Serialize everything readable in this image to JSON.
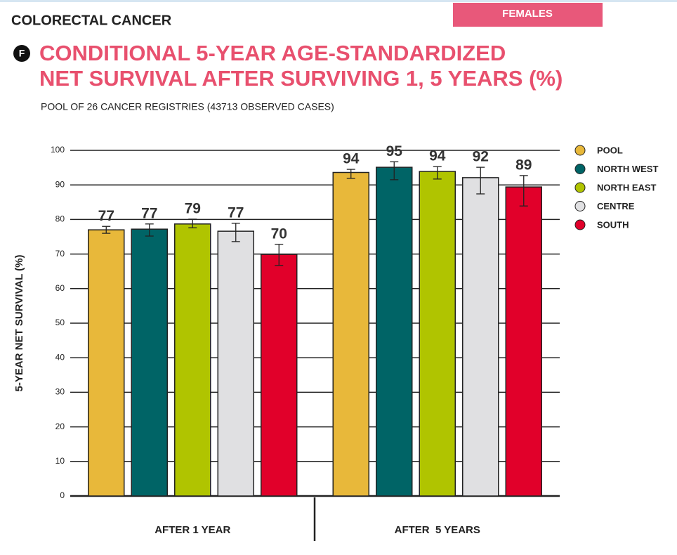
{
  "header": {
    "section": "COLORECTAL CANCER",
    "tag": "FEMALES"
  },
  "chart_data": {
    "type": "bar",
    "panel_label": "F",
    "title": [
      "CONDITIONAL 5-YEAR AGE-STANDARDIZED",
      "NET SURVIVAL AFTER SURVIVING 1, 5 YEARS (%)"
    ],
    "subtitle": "POOL OF 26 CANCER REGISTRIES (43713 OBSERVED CASES)",
    "y_label": "5-YEAR NET SURVIVAL (%)",
    "categories": [
      "AFTER 1 YEAR",
      "AFTER  5 YEARS"
    ],
    "series": [
      {
        "name": "POOL",
        "color": "#e8b83a",
        "values": [
          77.0,
          93.6
        ],
        "lower": [
          76.0,
          91.9
        ],
        "upper": [
          78.0,
          94.5
        ]
      },
      {
        "name": "NORTH WEST",
        "color": "#006466",
        "values": [
          77.2,
          95.1
        ],
        "lower": [
          75.2,
          91.5
        ],
        "upper": [
          78.7,
          96.7
        ]
      },
      {
        "name": "NORTH EAST",
        "color": "#b0c400",
        "values": [
          78.7,
          93.9
        ],
        "lower": [
          77.6,
          91.7
        ],
        "upper": [
          80.1,
          95.3
        ]
      },
      {
        "name": "CENTRE",
        "color": "#e0e0e2",
        "values": [
          76.6,
          92.1
        ],
        "lower": [
          73.6,
          87.4
        ],
        "upper": [
          78.9,
          95.1
        ]
      },
      {
        "name": "SOUTH",
        "color": "#e1002a",
        "values": [
          69.9,
          89.4
        ],
        "lower": [
          66.7,
          83.9
        ],
        "upper": [
          72.8,
          92.7
        ]
      }
    ],
    "ylim": [
      0,
      100
    ],
    "yticks": [
      0,
      10,
      20,
      30,
      40,
      50,
      60,
      70,
      80,
      90,
      100
    ],
    "grid": true,
    "legend": "right"
  }
}
